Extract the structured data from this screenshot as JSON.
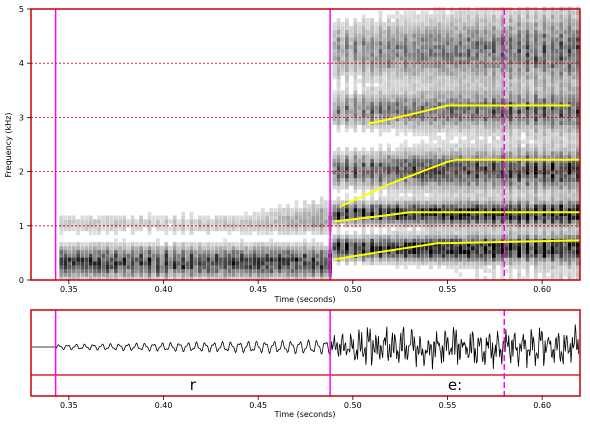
{
  "chart_data": {
    "type": "spectrogram",
    "spectrogram": {
      "xlabel": "Time (seconds)",
      "ylabel": "Frequency (kHz)",
      "xlim": [
        0.33,
        0.62
      ],
      "ylim": [
        0,
        5
      ],
      "x_ticks": [
        "0.35",
        "0.40",
        "0.45",
        "0.50",
        "0.55",
        "0.60"
      ],
      "x_tick_values": [
        0.35,
        0.4,
        0.45,
        0.5,
        0.55,
        0.6
      ],
      "y_ticks": [
        "0",
        "1",
        "2",
        "3",
        "4",
        "5"
      ],
      "y_tick_values": [
        0,
        1,
        2,
        3,
        4,
        5
      ],
      "grid": "horizontal dashed red at each kHz",
      "formants": [
        {
          "x": [
            0.49,
            0.515,
            0.545,
            0.55,
            0.62
          ],
          "y": [
            0.38,
            0.52,
            0.68,
            0.68,
            0.73
          ]
        },
        {
          "x": [
            0.49,
            0.515,
            0.53,
            0.55,
            0.62
          ],
          "y": [
            1.08,
            1.18,
            1.25,
            1.25,
            1.25
          ]
        },
        {
          "x": [
            0.493,
            0.52,
            0.55,
            0.555,
            0.62
          ],
          "y": [
            1.35,
            1.78,
            2.18,
            2.22,
            2.22
          ]
        },
        {
          "x": [
            0.508,
            0.53,
            0.55,
            0.615
          ],
          "y": [
            2.88,
            3.05,
            3.22,
            3.22
          ]
        }
      ],
      "formant_color": "#ffff00",
      "boundary_color": "#ff00ff"
    },
    "waveform": {
      "xlabel": "Time (seconds)",
      "xlim": [
        0.33,
        0.62
      ],
      "x_ticks": [
        "0.35",
        "0.40",
        "0.45",
        "0.50",
        "0.55",
        "0.60"
      ],
      "x_tick_values": [
        0.35,
        0.4,
        0.45,
        0.5,
        0.55,
        0.6
      ]
    },
    "segments": [
      {
        "label": "r",
        "start": 0.343,
        "end": 0.488
      },
      {
        "label": "e:",
        "start": 0.488,
        "end": 0.62
      }
    ],
    "boundaries": [
      0.343,
      0.488
    ],
    "cursor": 0.58,
    "frame_color": "#cc0000"
  }
}
